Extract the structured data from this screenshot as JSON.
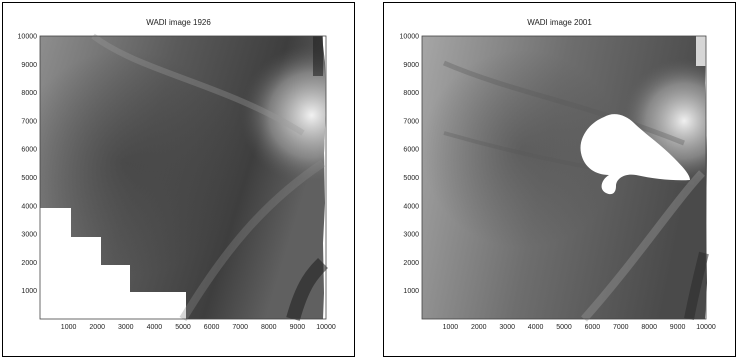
{
  "panels": [
    {
      "title": "WADI image 1926",
      "xticks": [
        "1000",
        "2000",
        "3000",
        "4000",
        "5000",
        "6000",
        "7000",
        "8000",
        "9000",
        "10000"
      ],
      "yticks": [
        "1000",
        "2000",
        "3000",
        "4000",
        "5000",
        "6000",
        "7000",
        "8000",
        "9000",
        "10000"
      ]
    },
    {
      "title": "WADI image 2001",
      "xticks": [
        "1000",
        "2000",
        "3000",
        "4000",
        "5000",
        "6000",
        "7000",
        "8000",
        "9000",
        "10000"
      ],
      "yticks": [
        "1000",
        "2000",
        "3000",
        "4000",
        "5000",
        "6000",
        "7000",
        "8000",
        "9000",
        "10000"
      ]
    }
  ]
}
